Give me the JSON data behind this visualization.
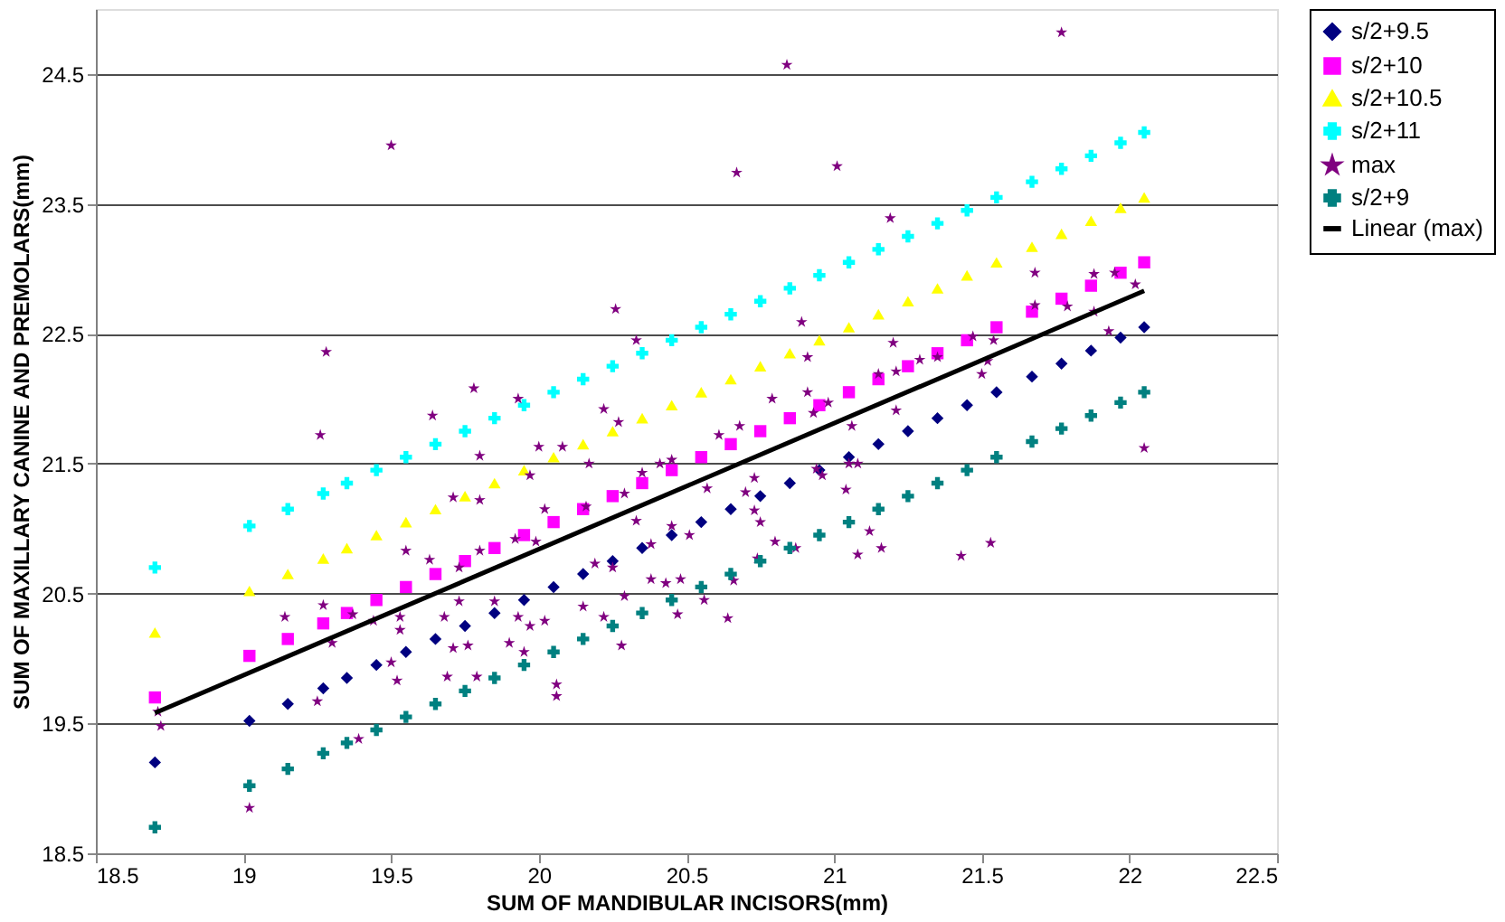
{
  "chart_data": {
    "type": "scatter",
    "xlabel": "SUM OF MANDIBULAR INCISORS(mm)",
    "ylabel": "SUM OF MAXILLARY CANINE AND PREMOLARS(mm)",
    "xlim": [
      18.5,
      22.5
    ],
    "xticks": [
      18.5,
      19,
      19.5,
      20,
      20.5,
      21,
      21.5,
      22,
      22.5
    ],
    "ylim": [
      18.5,
      25
    ],
    "yticks": [
      18.5,
      19.5,
      20.5,
      21.5,
      22.5,
      23.5,
      24.5
    ],
    "grid": "y",
    "legend": "right",
    "series": [
      {
        "name": "s/2+9.5",
        "color": "#000080",
        "marker": "diamond",
        "x": [
          18.7,
          19.02,
          19.15,
          19.27,
          19.35,
          19.45,
          19.55,
          19.65,
          19.75,
          19.85,
          19.95,
          20.05,
          20.15,
          20.25,
          20.35,
          20.45,
          20.55,
          20.65,
          20.75,
          20.85,
          20.95,
          21.05,
          21.15,
          21.25,
          21.35,
          21.45,
          21.55,
          21.67,
          21.77,
          21.87,
          21.97,
          22.05
        ],
        "values": [
          19.2,
          19.52,
          19.65,
          19.77,
          19.85,
          19.95,
          20.05,
          20.15,
          20.25,
          20.35,
          20.45,
          20.55,
          20.65,
          20.75,
          20.85,
          20.95,
          21.05,
          21.15,
          21.25,
          21.35,
          21.45,
          21.55,
          21.65,
          21.75,
          21.85,
          21.95,
          22.05,
          22.17,
          22.27,
          22.37,
          22.47,
          22.55
        ]
      },
      {
        "name": "s/2+10",
        "color": "#ff00ff",
        "marker": "square",
        "x": [
          18.7,
          19.02,
          19.15,
          19.27,
          19.35,
          19.45,
          19.55,
          19.65,
          19.75,
          19.85,
          19.95,
          20.05,
          20.15,
          20.25,
          20.35,
          20.45,
          20.55,
          20.65,
          20.75,
          20.85,
          20.95,
          21.05,
          21.15,
          21.25,
          21.35,
          21.45,
          21.55,
          21.67,
          21.77,
          21.87,
          21.97,
          22.05
        ],
        "values": [
          19.7,
          20.02,
          20.15,
          20.27,
          20.35,
          20.45,
          20.55,
          20.65,
          20.75,
          20.85,
          20.95,
          21.05,
          21.15,
          21.25,
          21.35,
          21.45,
          21.55,
          21.65,
          21.75,
          21.85,
          21.95,
          22.05,
          22.15,
          22.25,
          22.35,
          22.45,
          22.55,
          22.67,
          22.77,
          22.87,
          22.97,
          23.05
        ]
      },
      {
        "name": "s/2+10.5",
        "color": "#ffff00",
        "marker": "triangle",
        "x": [
          18.7,
          19.02,
          19.15,
          19.27,
          19.35,
          19.45,
          19.55,
          19.65,
          19.75,
          19.85,
          19.95,
          20.05,
          20.15,
          20.25,
          20.35,
          20.45,
          20.55,
          20.65,
          20.75,
          20.85,
          20.95,
          21.05,
          21.15,
          21.25,
          21.35,
          21.45,
          21.55,
          21.67,
          21.77,
          21.87,
          21.97,
          22.05
        ],
        "values": [
          20.2,
          20.52,
          20.65,
          20.77,
          20.85,
          20.95,
          21.05,
          21.15,
          21.25,
          21.35,
          21.45,
          21.55,
          21.65,
          21.75,
          21.85,
          21.95,
          22.05,
          22.15,
          22.25,
          22.35,
          22.45,
          22.55,
          22.65,
          22.75,
          22.85,
          22.95,
          23.05,
          23.17,
          23.27,
          23.37,
          23.47,
          23.55
        ]
      },
      {
        "name": "s/2+11",
        "color": "#00ffff",
        "marker": "cross",
        "x": [
          18.7,
          19.02,
          19.15,
          19.27,
          19.35,
          19.45,
          19.55,
          19.65,
          19.75,
          19.85,
          19.95,
          20.05,
          20.15,
          20.25,
          20.35,
          20.45,
          20.55,
          20.65,
          20.75,
          20.85,
          20.95,
          21.05,
          21.15,
          21.25,
          21.35,
          21.45,
          21.55,
          21.67,
          21.77,
          21.87,
          21.97,
          22.05
        ],
        "values": [
          20.7,
          21.02,
          21.15,
          21.27,
          21.35,
          21.45,
          21.55,
          21.65,
          21.75,
          21.85,
          21.95,
          22.05,
          22.15,
          22.25,
          22.35,
          22.45,
          22.55,
          22.65,
          22.75,
          22.85,
          22.95,
          23.05,
          23.15,
          23.25,
          23.35,
          23.45,
          23.55,
          23.67,
          23.77,
          23.87,
          23.97,
          24.05
        ]
      },
      {
        "name": "max",
        "color": "#800080",
        "marker": "star",
        "x": [
          19.5,
          20.26,
          20.33,
          19.28,
          19.78,
          19.93,
          19.64,
          20.22,
          20.27,
          19.26,
          20.0,
          20.08,
          20.84,
          21.77,
          20.67,
          21.01,
          21.19,
          20.89,
          21.2,
          20.91,
          20.79,
          21.68,
          21.68,
          21.88,
          21.95,
          22.02,
          21.79,
          21.88,
          21.93,
          21.47,
          21.54,
          21.35,
          21.52,
          21.5,
          21.29,
          21.15,
          21.21,
          20.91,
          20.98,
          21.21,
          21.06,
          20.61,
          20.68,
          20.93,
          22.05,
          19.8,
          19.97,
          20.17,
          19.71,
          19.8,
          20.02,
          19.55,
          19.63,
          19.8,
          19.73,
          19.92,
          19.99,
          20.16,
          20.35,
          20.41,
          20.45,
          20.29,
          20.33,
          20.38,
          20.45,
          20.51,
          20.19,
          20.25,
          19.27,
          19.14,
          19.37,
          19.44,
          19.3,
          19.53,
          19.53,
          19.68,
          19.73,
          19.85,
          19.93,
          19.97,
          20.02,
          19.9,
          19.95,
          19.71,
          19.76,
          19.52,
          19.69,
          19.79,
          20.06,
          20.06,
          20.15,
          20.22,
          20.28,
          20.29,
          20.38,
          20.43,
          20.48,
          20.47,
          19.25,
          18.71,
          18.72,
          19.02,
          19.39,
          19.5,
          21.08,
          21.16,
          21.12,
          21.43,
          21.53,
          20.64,
          20.56,
          20.66,
          20.8,
          20.75,
          20.73,
          20.73,
          20.7,
          20.57,
          21.04,
          20.94,
          20.96,
          21.05,
          21.08,
          20.74,
          20.87
        ],
        "values": [
          23.95,
          22.69,
          22.45,
          22.36,
          22.08,
          22.0,
          21.87,
          21.92,
          21.82,
          21.72,
          21.63,
          21.63,
          24.57,
          24.82,
          23.74,
          23.79,
          23.39,
          22.59,
          22.43,
          22.32,
          22.0,
          22.97,
          22.72,
          22.96,
          22.97,
          22.88,
          22.71,
          22.67,
          22.52,
          22.48,
          22.45,
          22.32,
          22.29,
          22.19,
          22.3,
          22.19,
          22.21,
          22.05,
          21.97,
          21.91,
          21.79,
          21.72,
          21.79,
          21.89,
          21.62,
          21.56,
          21.41,
          21.5,
          21.24,
          21.22,
          21.15,
          20.83,
          20.76,
          20.83,
          20.7,
          20.92,
          20.9,
          21.17,
          21.43,
          21.5,
          21.53,
          21.27,
          21.06,
          20.88,
          21.02,
          20.95,
          20.73,
          20.7,
          20.41,
          20.32,
          20.34,
          20.29,
          20.12,
          20.32,
          20.22,
          20.32,
          20.44,
          20.44,
          20.32,
          20.25,
          20.29,
          20.12,
          20.05,
          20.08,
          20.1,
          19.83,
          19.86,
          19.86,
          19.8,
          19.71,
          20.4,
          20.32,
          20.1,
          20.48,
          20.61,
          20.58,
          20.61,
          20.34,
          19.67,
          19.59,
          19.48,
          18.85,
          19.38,
          19.97,
          20.8,
          20.85,
          20.98,
          20.79,
          20.89,
          20.31,
          20.45,
          20.6,
          20.9,
          21.05,
          21.14,
          21.39,
          21.28,
          21.31,
          21.3,
          21.46,
          21.41,
          21.5,
          21.5,
          20.77,
          20.85
        ]
      },
      {
        "name": "s/2+9",
        "color": "#008080",
        "marker": "cross",
        "x": [
          18.7,
          19.02,
          19.15,
          19.27,
          19.35,
          19.45,
          19.55,
          19.65,
          19.75,
          19.85,
          19.95,
          20.05,
          20.15,
          20.25,
          20.35,
          20.45,
          20.55,
          20.65,
          20.75,
          20.85,
          20.95,
          21.05,
          21.15,
          21.25,
          21.35,
          21.45,
          21.55,
          21.67,
          21.77,
          21.87,
          21.97,
          22.05
        ],
        "values": [
          18.7,
          19.02,
          19.15,
          19.27,
          19.35,
          19.45,
          19.55,
          19.65,
          19.75,
          19.85,
          19.95,
          20.05,
          20.15,
          20.25,
          20.35,
          20.45,
          20.55,
          20.65,
          20.75,
          20.85,
          20.95,
          21.05,
          21.15,
          21.25,
          21.35,
          21.45,
          21.55,
          21.67,
          21.77,
          21.87,
          21.97,
          22.05
        ]
      },
      {
        "name": "Linear (max)",
        "type": "line",
        "color": "#000000",
        "line_style": "solid",
        "marker": "none",
        "x": [
          18.7,
          22.05
        ],
        "values": [
          19.58,
          22.83
        ]
      }
    ]
  }
}
